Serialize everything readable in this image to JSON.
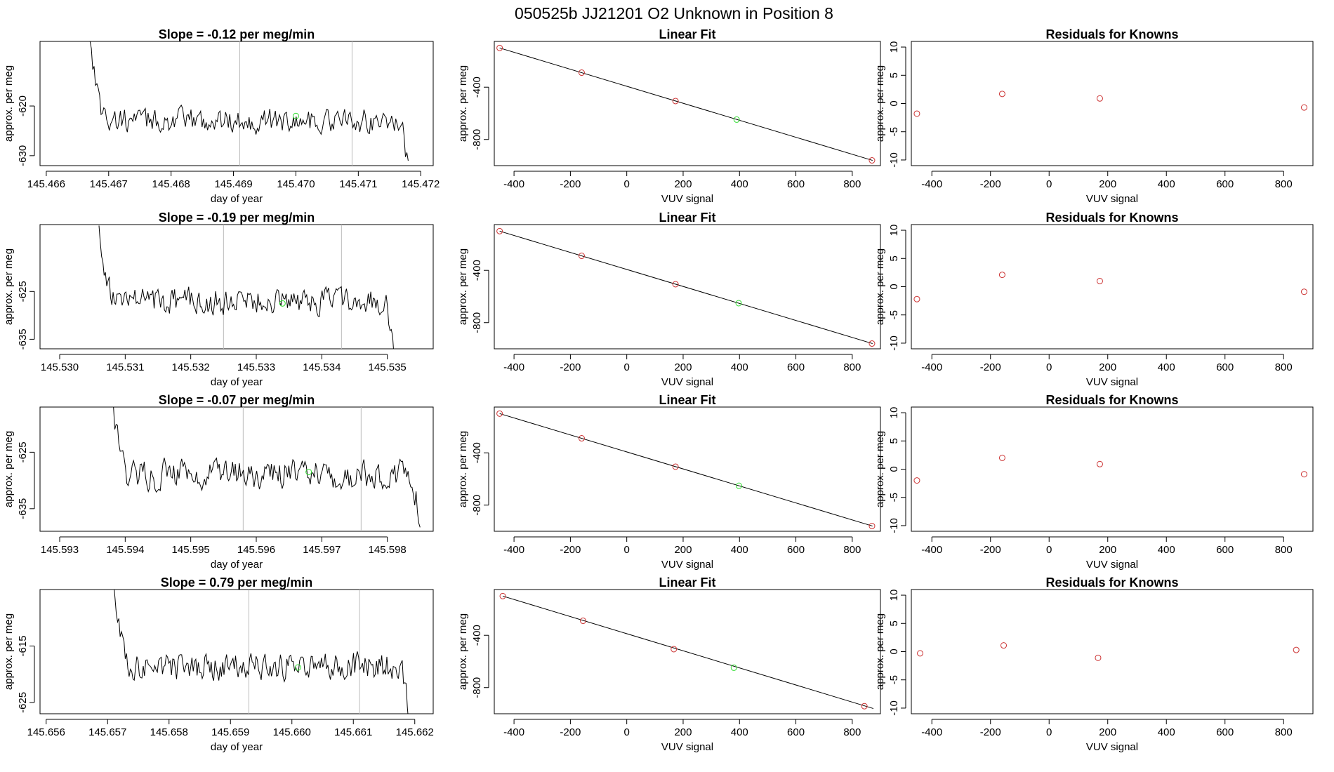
{
  "suptitle": "050525b      JJ21201    O2 Unknown in Position  8",
  "chart_data": [
    {
      "type": "line",
      "title": "Slope =  -0.12  per meg/min",
      "xlabel": "day of year",
      "ylabel": "approx. per meg",
      "xlim": [
        145.4659,
        145.4722
      ],
      "ylim": [
        -632,
        -607
      ],
      "xticks": [
        "145.466",
        "145.467",
        "145.468",
        "145.469",
        "145.470",
        "145.471",
        "145.472"
      ],
      "yticks": [
        "-630",
        "-620"
      ],
      "vlines": [
        145.4691,
        145.4709
      ],
      "series_start": 145.4667,
      "series_end": 145.4718,
      "trace_level": -623,
      "trace_amp": 2.2,
      "start_value": -606,
      "end_value": -633,
      "marker": {
        "x": 145.47,
        "y": -622.0,
        "color": "#33dd33"
      }
    },
    {
      "type": "scatter",
      "title": "Linear Fit",
      "xlabel": "VUV signal",
      "ylabel": "approx. per meg",
      "xlim": [
        -470,
        900
      ],
      "ylim": [
        -1000,
        -50
      ],
      "xticks": [
        "-400",
        "-200",
        "0",
        "200",
        "400",
        "600",
        "800"
      ],
      "yticks": [
        "-400",
        "-800"
      ],
      "fit_line": {
        "x": [
          -451,
          872
        ],
        "y": [
          -100,
          -960
        ]
      },
      "knowns": {
        "x": [
          -451,
          -160,
          173,
          870
        ],
        "y": [
          -100,
          -289,
          -506,
          -960
        ]
      },
      "unknown": {
        "x": 390,
        "y": -648,
        "color": "#33dd33"
      }
    },
    {
      "type": "scatter",
      "title": "Residuals for Knowns",
      "xlabel": "VUV signal",
      "ylabel": "approx. per meg",
      "xlim": [
        -470,
        900
      ],
      "ylim": [
        -11,
        11
      ],
      "xticks": [
        "-400",
        "-200",
        "0",
        "200",
        "400",
        "600",
        "800"
      ],
      "yticks": [
        "-10",
        "-5",
        "0",
        "5",
        "10"
      ],
      "points": {
        "x": [
          -451,
          -160,
          173,
          870
        ],
        "y": [
          -1.8,
          1.7,
          0.9,
          -0.7
        ]
      }
    },
    {
      "type": "line",
      "title": "Slope =  -0.19  per meg/min",
      "xlabel": "day of year",
      "ylabel": "approx. per meg",
      "xlim": [
        145.5297,
        145.5357
      ],
      "ylim": [
        -637,
        -611
      ],
      "xticks": [
        "145.530",
        "145.531",
        "145.532",
        "145.533",
        "145.534",
        "145.535"
      ],
      "yticks": [
        "-635",
        "-625"
      ],
      "vlines": [
        145.5325,
        145.5343
      ],
      "series_start": 145.5306,
      "series_end": 145.5351,
      "trace_level": -627,
      "trace_amp": 2.4,
      "start_value": -611,
      "end_value": -638,
      "marker": {
        "x": 145.5334,
        "y": -627.5,
        "color": "#33dd33"
      }
    },
    {
      "type": "scatter",
      "title": "Linear Fit",
      "xlabel": "VUV signal",
      "ylabel": "approx. per meg",
      "xlim": [
        -470,
        900
      ],
      "ylim": [
        -1000,
        -50
      ],
      "xticks": [
        "-400",
        "-200",
        "0",
        "200",
        "400",
        "600",
        "800"
      ],
      "yticks": [
        "-400",
        "-800"
      ],
      "fit_line": {
        "x": [
          -451,
          872
        ],
        "y": [
          -100,
          -960
        ]
      },
      "knowns": {
        "x": [
          -451,
          -160,
          173,
          870
        ],
        "y": [
          -100,
          -289,
          -506,
          -960
        ]
      },
      "unknown": {
        "x": 397,
        "y": -651,
        "color": "#33dd33"
      }
    },
    {
      "type": "scatter",
      "title": "Residuals for Knowns",
      "xlabel": "VUV signal",
      "ylabel": "approx. per meg",
      "xlim": [
        -470,
        900
      ],
      "ylim": [
        -11,
        11
      ],
      "xticks": [
        "-400",
        "-200",
        "0",
        "200",
        "400",
        "600",
        "800"
      ],
      "yticks": [
        "-10",
        "-5",
        "0",
        "5",
        "10"
      ],
      "points": {
        "x": [
          -451,
          -160,
          173,
          870
        ],
        "y": [
          -2.2,
          2.1,
          1.0,
          -0.9
        ]
      }
    },
    {
      "type": "line",
      "title": "Slope =  -0.07  per meg/min",
      "xlabel": "day of year",
      "ylabel": "approx. per meg",
      "xlim": [
        145.5927,
        145.5987
      ],
      "ylim": [
        -639,
        -617
      ],
      "xticks": [
        "145.593",
        "145.594",
        "145.595",
        "145.596",
        "145.597",
        "145.598"
      ],
      "yticks": [
        "-635",
        "-625"
      ],
      "vlines": [
        145.5958,
        145.5976
      ],
      "series_start": 145.5938,
      "series_end": 145.5985,
      "trace_level": -629,
      "trace_amp": 2.3,
      "start_value": -617,
      "end_value": -640,
      "marker": {
        "x": 145.5968,
        "y": -628.5,
        "color": "#33dd33"
      }
    },
    {
      "type": "scatter",
      "title": "Linear Fit",
      "xlabel": "VUV signal",
      "ylabel": "approx. per meg",
      "xlim": [
        -470,
        900
      ],
      "ylim": [
        -1000,
        -50
      ],
      "xticks": [
        "-400",
        "-200",
        "0",
        "200",
        "400",
        "600",
        "800"
      ],
      "yticks": [
        "-400",
        "-800"
      ],
      "fit_line": {
        "x": [
          -451,
          872
        ],
        "y": [
          -100,
          -960
        ]
      },
      "knowns": {
        "x": [
          -451,
          -160,
          173,
          870
        ],
        "y": [
          -100,
          -289,
          -506,
          -960
        ]
      },
      "unknown": {
        "x": 398,
        "y": -652,
        "color": "#33dd33"
      }
    },
    {
      "type": "scatter",
      "title": "Residuals for Knowns",
      "xlabel": "VUV signal",
      "ylabel": "approx. per meg",
      "xlim": [
        -470,
        900
      ],
      "ylim": [
        -11,
        11
      ],
      "xticks": [
        "-400",
        "-200",
        "0",
        "200",
        "400",
        "600",
        "800"
      ],
      "yticks": [
        "-10",
        "-5",
        "0",
        "5",
        "10"
      ],
      "points": {
        "x": [
          -451,
          -160,
          173,
          870
        ],
        "y": [
          -2.0,
          2.0,
          0.9,
          -0.9
        ]
      }
    },
    {
      "type": "line",
      "title": "Slope =  0.79  per meg/min",
      "xlabel": "day of year",
      "ylabel": "approx. per meg",
      "xlim": [
        145.6559,
        145.6623
      ],
      "ylim": [
        -627,
        -605
      ],
      "xticks": [
        "145.656",
        "145.657",
        "145.658",
        "145.659",
        "145.660",
        "145.661",
        "145.662"
      ],
      "yticks": [
        "-625",
        "-615"
      ],
      "vlines": [
        145.6593,
        145.6611
      ],
      "series_start": 145.6571,
      "series_end": 145.6619,
      "trace_level": -618.5,
      "trace_amp": 2.2,
      "start_value": -605,
      "end_value": -628,
      "marker": {
        "x": 145.6601,
        "y": -618.8,
        "color": "#33dd33"
      }
    },
    {
      "type": "scatter",
      "title": "Linear Fit",
      "xlabel": "VUV signal",
      "ylabel": "approx. per meg",
      "xlim": [
        -470,
        900
      ],
      "ylim": [
        -1000,
        -50
      ],
      "xticks": [
        "-400",
        "-200",
        "0",
        "200",
        "400",
        "600",
        "800"
      ],
      "yticks": [
        "-400",
        "-800"
      ],
      "fit_line": {
        "x": [
          -440,
          875
        ],
        "y": [
          -100,
          -960
        ]
      },
      "knowns": {
        "x": [
          -440,
          -155,
          167,
          843
        ],
        "y": [
          -100,
          -289,
          -506,
          -942
        ]
      },
      "unknown": {
        "x": 380,
        "y": -648,
        "color": "#33dd33"
      }
    },
    {
      "type": "scatter",
      "title": "Residuals for Knowns",
      "xlabel": "VUV signal",
      "ylabel": "approx. per meg",
      "xlim": [
        -470,
        900
      ],
      "ylim": [
        -11,
        11
      ],
      "xticks": [
        "-400",
        "-200",
        "0",
        "200",
        "400",
        "600",
        "800"
      ],
      "yticks": [
        "-10",
        "-5",
        "0",
        "5",
        "10"
      ],
      "points": {
        "x": [
          -440,
          -155,
          167,
          843
        ],
        "y": [
          -0.3,
          1.1,
          -1.1,
          0.3
        ]
      }
    }
  ]
}
